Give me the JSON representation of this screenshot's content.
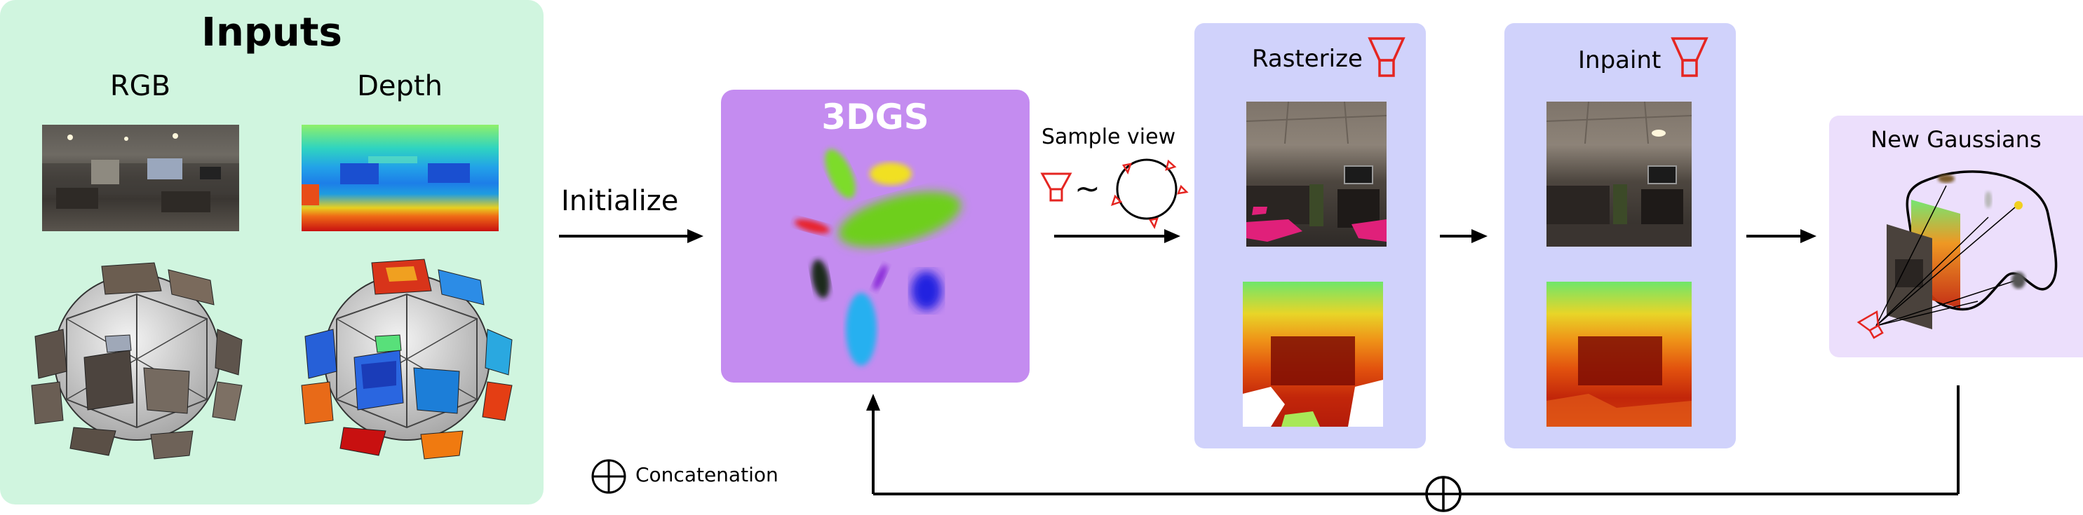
{
  "inputs": {
    "title": "Inputs",
    "rgb_label": "RGB",
    "depth_label": "Depth"
  },
  "initialize_label": "Initialize",
  "gaussians_box": {
    "title": "3DGS"
  },
  "sample_view_label": "Sample view",
  "tilde": "~",
  "rasterize_panel": {
    "title": "Rasterize"
  },
  "inpaint_panel": {
    "title": "Inpaint"
  },
  "new_gaussians": {
    "title": "New Gaussians"
  },
  "legend": {
    "concatenation_label": "Concatenation"
  },
  "colors": {
    "inputs_panel": "#d0f5df",
    "gaussians_box": "#c48cf0",
    "render_panels": "#d0d2fb",
    "new_gaussians_panel": "#ecdffc",
    "camera_red": "#e52521"
  }
}
